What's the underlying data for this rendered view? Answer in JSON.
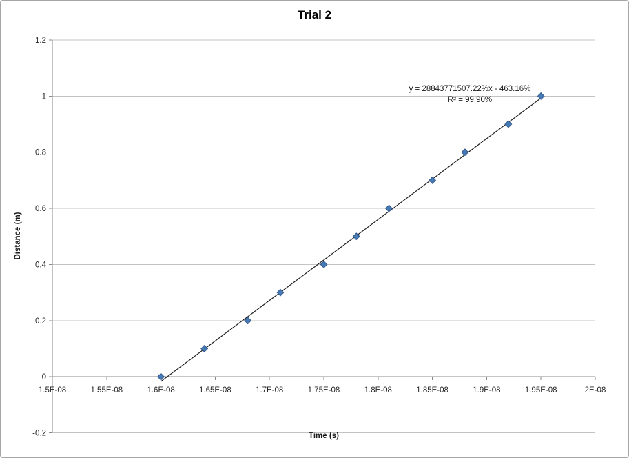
{
  "window": {
    "background": "#FFFFFF",
    "border_color": "#A6A6A6"
  },
  "colors": {
    "marker_fill": "#4779B5",
    "marker_stroke": "#31598C",
    "trendline": "#1F1F1F",
    "gridline": "#C3C3C3",
    "axis": "#8A8A8A",
    "tick_text": "#262626",
    "title_text": "#000000"
  },
  "chart_data": {
    "type": "scatter",
    "title": "Trial 2",
    "xlabel": "Time (s)",
    "ylabel": "Distance (m)",
    "legend": "none",
    "grid": "horizontal-major",
    "x": [
      1.6e-08,
      1.64e-08,
      1.68e-08,
      1.71e-08,
      1.75e-08,
      1.78e-08,
      1.81e-08,
      1.85e-08,
      1.88e-08,
      1.92e-08,
      1.95e-08
    ],
    "y": [
      0.0,
      0.1,
      0.2,
      0.3,
      0.4,
      0.5,
      0.6,
      0.7,
      0.8,
      0.9,
      1.0
    ],
    "xlim": [
      1.5e-08,
      2e-08
    ],
    "ylim": [
      -0.2,
      1.2
    ],
    "x_tick_values": [
      1.5e-08,
      1.55e-08,
      1.6e-08,
      1.65e-08,
      1.7e-08,
      1.75e-08,
      1.8e-08,
      1.85e-08,
      1.9e-08,
      1.95e-08,
      2e-08
    ],
    "x_tick_labels": [
      "1.5E-08",
      "1.55E-08",
      "1.6E-08",
      "1.65E-08",
      "1.7E-08",
      "1.75E-08",
      "1.8E-08",
      "1.85E-08",
      "1.9E-08",
      "1.95E-08",
      "2E-08"
    ],
    "y_tick_values": [
      -0.2,
      0,
      0.2,
      0.4,
      0.6,
      0.8,
      1,
      1.2
    ],
    "y_tick_labels": [
      "-0.2",
      "0",
      "0.2",
      "0.4",
      "0.6",
      "0.8",
      "1",
      "1.2"
    ],
    "trendline": {
      "type": "linear",
      "slope": 288437715.0722,
      "intercept": -4.6316,
      "equation_label": "y = 28843771507.22%x - 463.16%",
      "r2_label": "R² = 99.90%"
    }
  }
}
